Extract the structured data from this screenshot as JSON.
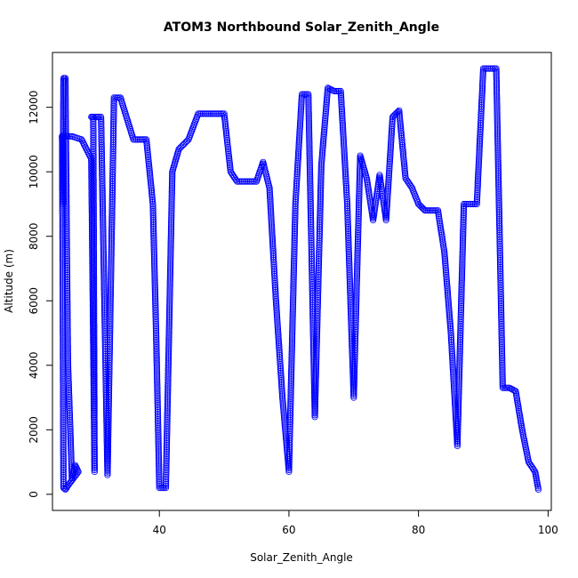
{
  "chart_data": {
    "type": "scatter",
    "title": "ATOM3 Northbound Solar_Zenith_Angle",
    "xlabel": "Solar_Zenith_Angle",
    "ylabel": "Altitude (m)",
    "xlim": [
      23.5,
      100.5
    ],
    "ylim": [
      -500,
      13700
    ],
    "xticks": [
      40,
      60,
      80,
      100
    ],
    "yticks": [
      0,
      2000,
      4000,
      6000,
      8000,
      10000,
      12000
    ],
    "grid": false,
    "legend": "none",
    "marker": "open-circle",
    "connect_points": true,
    "series_color": "#0000FF",
    "series": [
      {
        "x": [
          25.0,
          25.1,
          25.2,
          25.5,
          25.7,
          25.9,
          26.2,
          26.5,
          27.0,
          27.5,
          26.0,
          25.5,
          25.2,
          25.0,
          25.0,
          26.5,
          28.0,
          29.5,
          30.0,
          29.8,
          29.5,
          30.0,
          31.0,
          32.0,
          33.0,
          34.0,
          36.0,
          38.0,
          39.0,
          39.5,
          40.0,
          41.0,
          42.0,
          43.0,
          44.5,
          46.0,
          48.0,
          50.0,
          51.0,
          52.0,
          53.0,
          54.0,
          55.0,
          56.0,
          57.0,
          58.0,
          59.0,
          60.0,
          61.0,
          62.0,
          63.0,
          64.0,
          65.0,
          66.0,
          67.0,
          68.0,
          69.0,
          70.0,
          71.0,
          72.0,
          73.0,
          74.0,
          75.0,
          76.0,
          77.0,
          78.0,
          79.0,
          80.0,
          81.0,
          82.0,
          83.0,
          84.0,
          85.0,
          86.0,
          87.0,
          88.0,
          89.0,
          90.0,
          91.0,
          92.0,
          93.0,
          94.0,
          95.0,
          96.0,
          97.0,
          98.0,
          98.5
        ],
        "y": [
          11100,
          9000,
          12900,
          12900,
          8000,
          4000,
          2300,
          500,
          900,
          700,
          300,
          150,
          200,
          11100,
          11100,
          11100,
          11000,
          10400,
          700,
          11700,
          11700,
          11700,
          11700,
          600,
          12300,
          12300,
          11000,
          11000,
          9000,
          5000,
          200,
          200,
          10000,
          10700,
          11000,
          11800,
          11800,
          11800,
          10000,
          9700,
          9700,
          9700,
          9700,
          10300,
          9500,
          6000,
          3000,
          700,
          9000,
          12400,
          12400,
          2400,
          10200,
          12600,
          12500,
          12500,
          9000,
          3000,
          10500,
          9800,
          8500,
          9900,
          8500,
          11700,
          11900,
          9800,
          9500,
          9000,
          8800,
          8800,
          8800,
          7500,
          5000,
          1500,
          9000,
          9000,
          9000,
          13200,
          13200,
          13200,
          3300,
          3300,
          3200,
          2000,
          1000,
          700,
          150
        ]
      }
    ]
  }
}
